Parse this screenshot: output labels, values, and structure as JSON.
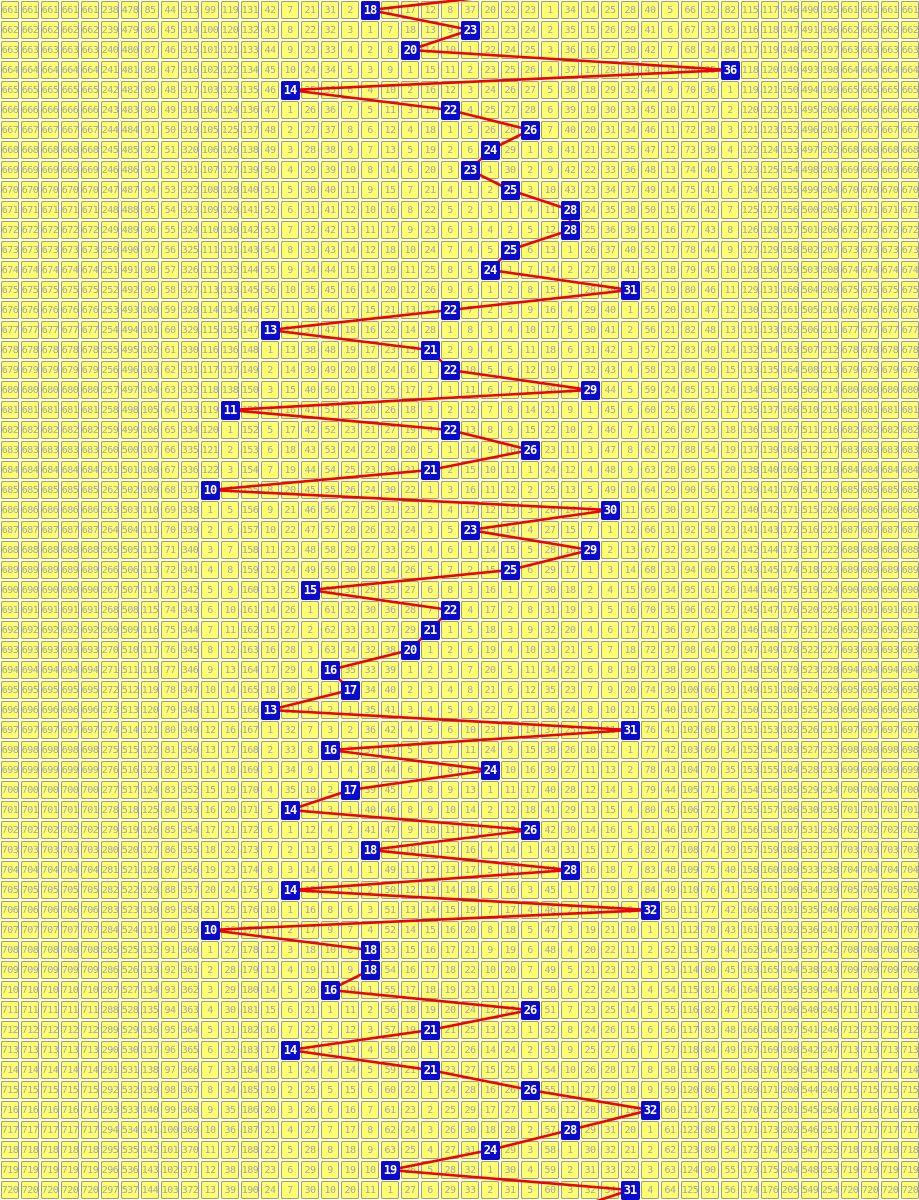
{
  "chart_data": {
    "type": "line",
    "title": "",
    "x": [
      661,
      662,
      663,
      664,
      665,
      666,
      667,
      668,
      669,
      670,
      671,
      672,
      673,
      674,
      675,
      676,
      677,
      678,
      679,
      680,
      681,
      682,
      683,
      684,
      685,
      686,
      687,
      688,
      689,
      690,
      691,
      692,
      693,
      694,
      695,
      696,
      697,
      698,
      699,
      700,
      701,
      702,
      703,
      704,
      705,
      706,
      707,
      708,
      709,
      710,
      711,
      712,
      713,
      714,
      715,
      716,
      717,
      718,
      719,
      720
    ],
    "values": [
      18,
      23,
      20,
      36,
      14,
      22,
      26,
      24,
      23,
      25,
      28,
      28,
      25,
      24,
      31,
      22,
      13,
      21,
      22,
      29,
      11,
      22,
      26,
      21,
      10,
      30,
      23,
      29,
      25,
      15,
      22,
      21,
      20,
      16,
      17,
      13,
      31,
      16,
      24,
      17,
      14,
      26,
      18,
      28,
      14,
      32,
      10,
      18,
      18,
      16,
      26,
      21,
      14,
      21,
      26,
      32,
      28,
      24,
      19,
      31
    ],
    "value_axis_range": [
      5,
      41
    ],
    "orientation": "values run horizontally, periods run down",
    "grid": "on",
    "legend": "none"
  },
  "grid": {
    "value_min": 5,
    "value_max": 41,
    "left_label_repeat": 5,
    "right_label_repeat": 4,
    "incoming_from_value": 27,
    "outgoing_to_value": 28,
    "initial_miss": {
      "5": 238,
      "6": 478,
      "7": 85,
      "8": 44,
      "9": 313,
      "10": 99,
      "11": 119,
      "12": 131,
      "13": 42,
      "14": 7,
      "15": 21,
      "16": 31,
      "17": 2,
      "18": 0,
      "19": 6,
      "20": 17,
      "21": 12,
      "22": 8,
      "23": 37,
      "24": 20,
      "25": 22,
      "26": 23,
      "27": 1,
      "28": 34,
      "29": 14,
      "30": 25,
      "31": 28,
      "32": 40,
      "33": 5,
      "34": 66,
      "35": 32,
      "36": 82,
      "37": 115,
      "38": 117,
      "39": 146,
      "40": 490,
      "41": 195
    },
    "draws": [
      {
        "period": 661,
        "value": 18
      },
      {
        "period": 662,
        "value": 23
      },
      {
        "period": 663,
        "value": 20
      },
      {
        "period": 664,
        "value": 36
      },
      {
        "period": 665,
        "value": 14
      },
      {
        "period": 666,
        "value": 22
      },
      {
        "period": 667,
        "value": 26
      },
      {
        "period": 668,
        "value": 24
      },
      {
        "period": 669,
        "value": 23
      },
      {
        "period": 670,
        "value": 25
      },
      {
        "period": 671,
        "value": 28
      },
      {
        "period": 672,
        "value": 28
      },
      {
        "period": 673,
        "value": 25
      },
      {
        "period": 674,
        "value": 24
      },
      {
        "period": 675,
        "value": 31
      },
      {
        "period": 676,
        "value": 22
      },
      {
        "period": 677,
        "value": 13
      },
      {
        "period": 678,
        "value": 21
      },
      {
        "period": 679,
        "value": 22
      },
      {
        "period": 680,
        "value": 29
      },
      {
        "period": 681,
        "value": 11
      },
      {
        "period": 682,
        "value": 22
      },
      {
        "period": 683,
        "value": 26
      },
      {
        "period": 684,
        "value": 21
      },
      {
        "period": 685,
        "value": 10
      },
      {
        "period": 686,
        "value": 30
      },
      {
        "period": 687,
        "value": 23
      },
      {
        "period": 688,
        "value": 29
      },
      {
        "period": 689,
        "value": 25
      },
      {
        "period": 690,
        "value": 15
      },
      {
        "period": 691,
        "value": 22
      },
      {
        "period": 692,
        "value": 21
      },
      {
        "period": 693,
        "value": 20
      },
      {
        "period": 694,
        "value": 16
      },
      {
        "period": 695,
        "value": 17
      },
      {
        "period": 696,
        "value": 13
      },
      {
        "period": 697,
        "value": 31
      },
      {
        "period": 698,
        "value": 16
      },
      {
        "period": 699,
        "value": 24
      },
      {
        "period": 700,
        "value": 17
      },
      {
        "period": 701,
        "value": 14
      },
      {
        "period": 702,
        "value": 26
      },
      {
        "period": 703,
        "value": 18
      },
      {
        "period": 704,
        "value": 28
      },
      {
        "period": 705,
        "value": 14
      },
      {
        "period": 706,
        "value": 32
      },
      {
        "period": 707,
        "value": 10
      },
      {
        "period": 708,
        "value": 18
      },
      {
        "period": 709,
        "value": 18
      },
      {
        "period": 710,
        "value": 16
      },
      {
        "period": 711,
        "value": 26
      },
      {
        "period": 712,
        "value": 21
      },
      {
        "period": 713,
        "value": 14
      },
      {
        "period": 714,
        "value": 21
      },
      {
        "period": 715,
        "value": 26
      },
      {
        "period": 716,
        "value": 32
      },
      {
        "period": 717,
        "value": 28
      },
      {
        "period": 718,
        "value": 24
      },
      {
        "period": 719,
        "value": 19
      },
      {
        "period": 720,
        "value": 31
      }
    ]
  },
  "colors": {
    "page_bg": "#FFFFC6",
    "cell_bg": "#FFFF72",
    "cell_border": "#9A9A9A",
    "miss_text": "#A4A4A4",
    "drawn_bg": "#0A0ACD",
    "drawn_text": "#FFFFFF",
    "trend_line": "#EE0202"
  }
}
